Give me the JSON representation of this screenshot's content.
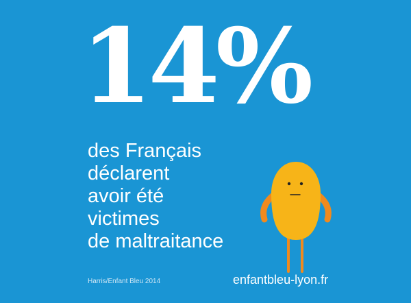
{
  "stat": {
    "value": "14%"
  },
  "statement": {
    "lines": [
      "des Français",
      "déclarent",
      "avoir été",
      "victimes",
      "de maltraitance"
    ]
  },
  "source": "Harris/Enfant Bleu 2014",
  "website": "enfantbleu-lyon.fr",
  "colors": {
    "background": "#1a95d4",
    "text": "#ffffff",
    "mascot_body": "#f7b418",
    "mascot_limbs": "#f08a1e"
  }
}
